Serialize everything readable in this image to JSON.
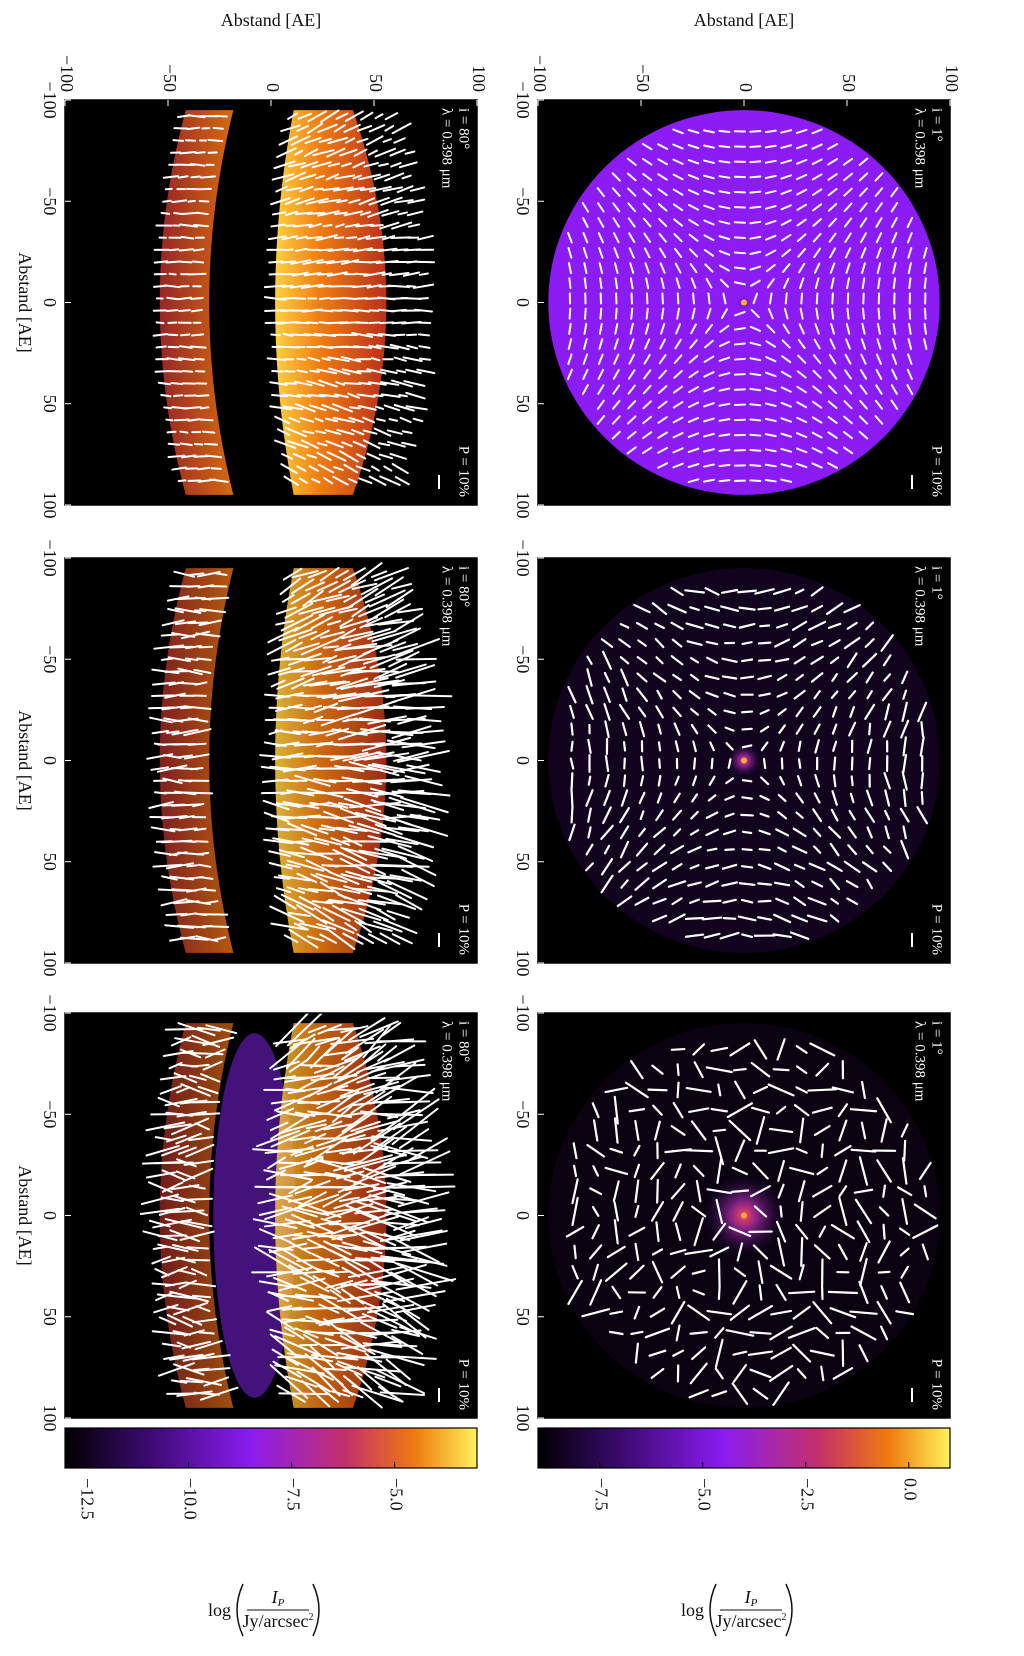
{
  "chart_data": [
    {
      "type": "polarization-map",
      "inclination": "i = 1°",
      "wavelength": "λ = 0.398 μm",
      "scale_label": "P = 10%",
      "xlim": [
        -100,
        100
      ],
      "ylim": [
        -100,
        100
      ],
      "xticks": [
        {
          "value": -100,
          "label": "−100"
        },
        {
          "value": -50,
          "label": "−50"
        },
        0,
        50,
        100
      ],
      "yticks": [
        {
          "value": -100,
          "label": "−100"
        },
        {
          "value": -50,
          "label": "−50"
        },
        0,
        50,
        100
      ],
      "ylabel": "Abstand [AE]"
    },
    {
      "type": "polarization-map",
      "inclination": "i = 1°",
      "wavelength": "λ = 0.398 μm",
      "scale_label": "P = 10%",
      "xlim": [
        -100,
        100
      ],
      "ylim": [
        -100,
        100
      ],
      "xticks": [
        {
          "value": -100,
          "label": "−100"
        },
        {
          "value": -50,
          "label": "−50"
        },
        0,
        50,
        100
      ]
    },
    {
      "type": "polarization-map",
      "inclination": "i = 1°",
      "wavelength": "λ = 0.398 μm",
      "scale_label": "P = 10%",
      "xlim": [
        -100,
        100
      ],
      "ylim": [
        -100,
        100
      ],
      "xticks": [
        {
          "value": -100,
          "label": "−100"
        },
        {
          "value": -50,
          "label": "−50"
        },
        0,
        50,
        100
      ],
      "colorbar": {
        "clim": [
          -9,
          1
        ],
        "ticks": [
          {
            "value": 0,
            "label": "0.0"
          },
          {
            "value": -2.5,
            "label": "−2.5"
          },
          {
            "value": -5,
            "label": "−5.0"
          },
          {
            "value": -7.5,
            "label": "−7.5"
          }
        ],
        "label": {
          "prefix": "log",
          "numerator": "I",
          "numerator_sub": "P",
          "denominator": "Jy/arcsec",
          "denominator_sup": "2"
        }
      }
    },
    {
      "type": "polarization-map",
      "inclination": "i = 80°",
      "wavelength": "λ = 0.398 μm",
      "scale_label": "P = 10%",
      "xlim": [
        -100,
        100
      ],
      "ylim": [
        -100,
        100
      ],
      "xticks": [
        {
          "value": -100,
          "label": "−100"
        },
        {
          "value": -50,
          "label": "−50"
        },
        0,
        50,
        100
      ],
      "yticks": [
        {
          "value": -100,
          "label": "−100"
        },
        {
          "value": -50,
          "label": "−50"
        },
        0,
        50,
        100
      ],
      "xlabel": "Abstand [AE]",
      "ylabel": "Abstand [AE]"
    },
    {
      "type": "polarization-map",
      "inclination": "i = 80°",
      "wavelength": "λ = 0.398 μm",
      "scale_label": "P = 10%",
      "xlim": [
        -100,
        100
      ],
      "ylim": [
        -100,
        100
      ],
      "xticks": [
        {
          "value": -100,
          "label": "−100"
        },
        {
          "value": -50,
          "label": "−50"
        },
        0,
        50,
        100
      ],
      "xlabel": "Abstand [AE]"
    },
    {
      "type": "polarization-map",
      "inclination": "i = 80°",
      "wavelength": "λ = 0.398 μm",
      "scale_label": "P = 10%",
      "xlim": [
        -100,
        100
      ],
      "ylim": [
        -100,
        100
      ],
      "xticks": [
        {
          "value": -100,
          "label": "−100"
        },
        {
          "value": -50,
          "label": "−50"
        },
        0,
        50,
        100
      ],
      "xlabel": "Abstand [AE]",
      "colorbar": {
        "clim": [
          -13,
          -3
        ],
        "ticks": [
          {
            "value": -5,
            "label": "−5.0"
          },
          {
            "value": -7.5,
            "label": "−7.5"
          },
          {
            "value": -10,
            "label": "−10.0"
          },
          {
            "value": -12.5,
            "label": "−12.5"
          }
        ],
        "label": {
          "prefix": "log",
          "numerator": "I",
          "numerator_sub": "P",
          "denominator": "Jy/arcsec",
          "denominator_sup": "2"
        }
      }
    }
  ]
}
